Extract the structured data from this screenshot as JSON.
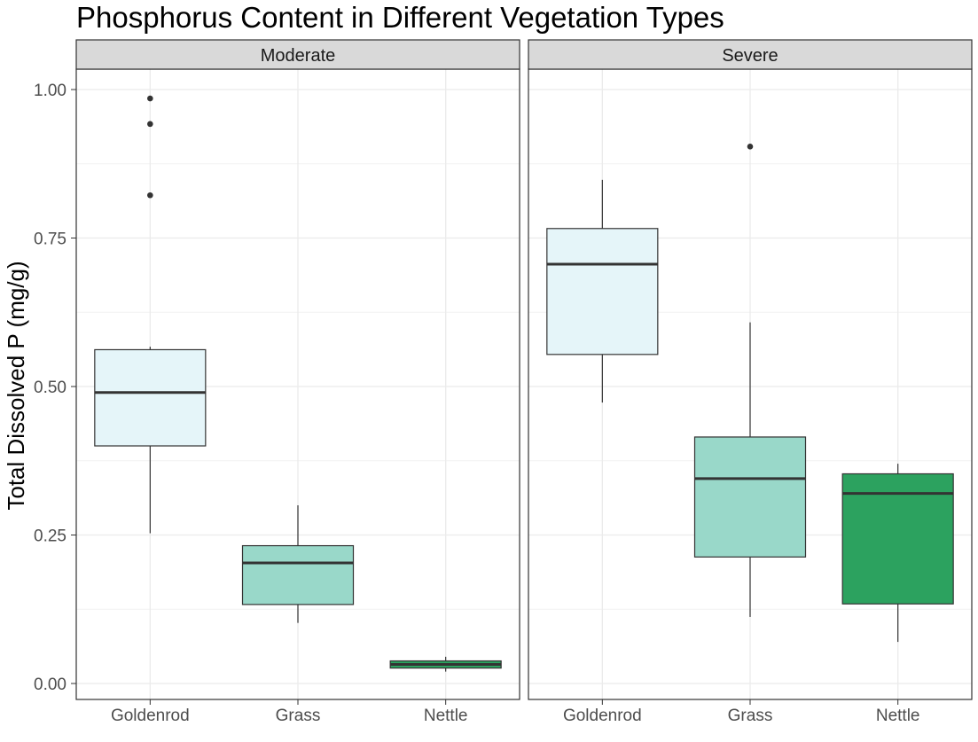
{
  "chart_data": {
    "type": "boxplot",
    "title": "Phosphorus Content in Different Vegetation Types",
    "ylabel": "Total Dissolved P (mg/g)",
    "xlabel": "",
    "ylim": [
      0,
      1.0
    ],
    "yticks": [
      0.0,
      0.25,
      0.5,
      0.75,
      1.0
    ],
    "ytick_labels": [
      "0.00",
      "0.25",
      "0.50",
      "0.75",
      "1.00"
    ],
    "categories": [
      "Goldenrod",
      "Grass",
      "Nettle"
    ],
    "colors": {
      "Goldenrod": "#e5f5f9",
      "Grass": "#99d8c9",
      "Nettle": "#2ca25f"
    },
    "grid": true,
    "legend": "none",
    "panels": [
      {
        "strip": "Moderate",
        "boxes": [
          {
            "category": "Goldenrod",
            "whisker_low": 0.253,
            "q1": 0.4,
            "median": 0.49,
            "q3": 0.562,
            "whisker_high": 0.567,
            "outliers": [
              0.985,
              0.942,
              0.822
            ]
          },
          {
            "category": "Grass",
            "whisker_low": 0.102,
            "q1": 0.133,
            "median": 0.203,
            "q3": 0.232,
            "whisker_high": 0.3,
            "outliers": []
          },
          {
            "category": "Nettle",
            "whisker_low": 0.02,
            "q1": 0.026,
            "median": 0.032,
            "q3": 0.038,
            "whisker_high": 0.045,
            "outliers": []
          }
        ]
      },
      {
        "strip": "Severe",
        "boxes": [
          {
            "category": "Goldenrod",
            "whisker_low": 0.473,
            "q1": 0.554,
            "median": 0.706,
            "q3": 0.766,
            "whisker_high": 0.848,
            "outliers": []
          },
          {
            "category": "Grass",
            "whisker_low": 0.112,
            "q1": 0.213,
            "median": 0.345,
            "q3": 0.415,
            "whisker_high": 0.608,
            "outliers": [
              0.904
            ]
          },
          {
            "category": "Nettle",
            "whisker_low": 0.07,
            "q1": 0.134,
            "median": 0.32,
            "q3": 0.353,
            "whisker_high": 0.37,
            "outliers": []
          }
        ]
      }
    ]
  }
}
